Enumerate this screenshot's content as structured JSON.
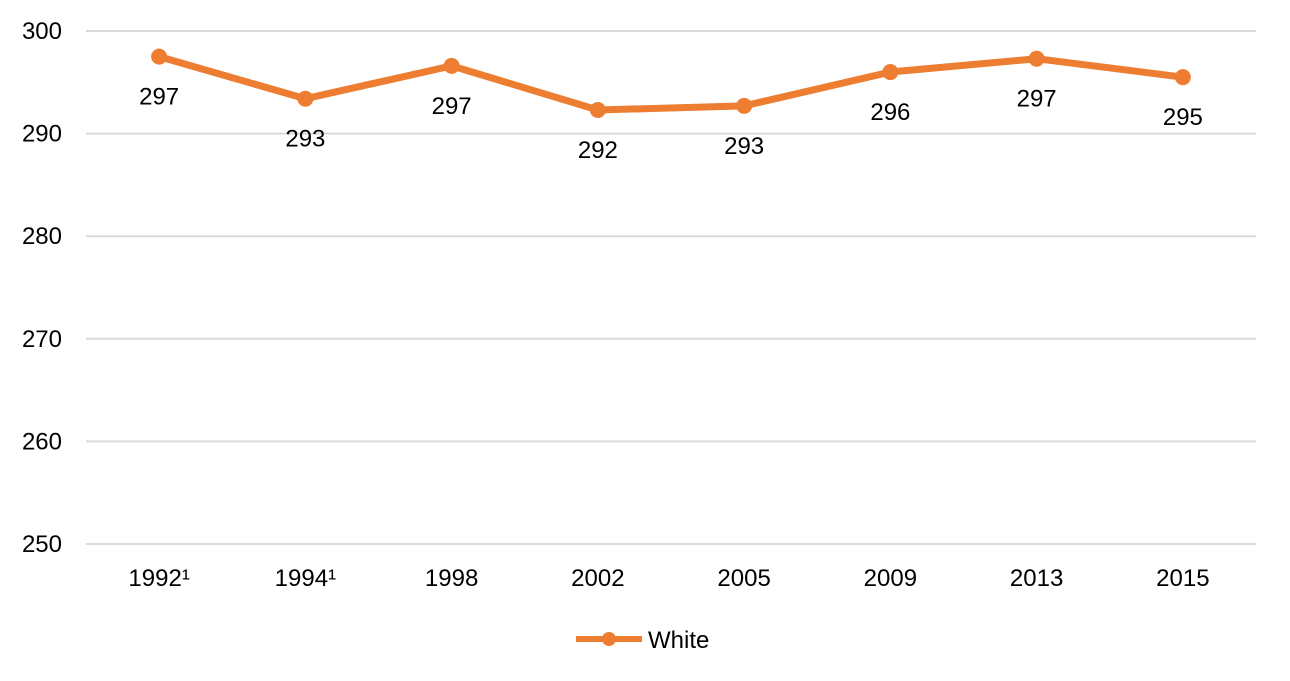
{
  "chart_data": {
    "type": "line",
    "categories": [
      "1992¹",
      "1994¹",
      "1998",
      "2002",
      "2005",
      "2009",
      "2013",
      "2015"
    ],
    "series": [
      {
        "name": "White",
        "values": [
          297.5,
          293.4,
          296.6,
          292.3,
          292.7,
          296.0,
          297.3,
          295.5
        ],
        "labels": [
          "297",
          "293",
          "297",
          "292",
          "293",
          "296",
          "297",
          "295"
        ],
        "color": "#ed7d31"
      }
    ],
    "ylim": [
      250,
      300
    ],
    "yticks": [
      "250",
      "260",
      "270",
      "280",
      "290",
      "300"
    ],
    "grid": true,
    "legend_position": "bottom",
    "colors": {
      "line": "#ed7d31",
      "grid": "#d9d9d9",
      "text": "#000000"
    }
  }
}
